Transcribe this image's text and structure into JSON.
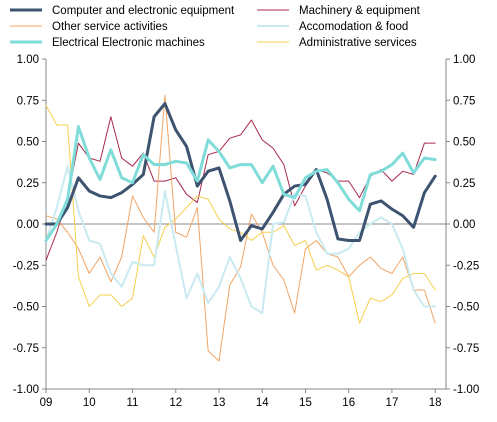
{
  "chart_data": {
    "type": "line",
    "title": "",
    "xlabel": "",
    "ylabel": "",
    "ylim": [
      -1.0,
      1.0
    ],
    "y_ticks": [
      "1.00",
      "0.75",
      "0.50",
      "0.25",
      "0.00",
      "-0.25",
      "-0.50",
      "-0.75",
      "-1.00"
    ],
    "y_tick_values": [
      1.0,
      0.75,
      0.5,
      0.25,
      0.0,
      -0.25,
      -0.5,
      -0.75,
      -1.0
    ],
    "x_ticks": [
      "09",
      "10",
      "11",
      "12",
      "13",
      "14",
      "15",
      "16",
      "17",
      "18"
    ],
    "x_tick_values": [
      2009,
      2010,
      2011,
      2012,
      2013,
      2014,
      2015,
      2016,
      2017,
      2018
    ],
    "xlim": [
      2009,
      2018.25
    ],
    "grid": false,
    "zero_line": true,
    "legend_position": "top",
    "series": [
      {
        "name": "Computer and electronic equipment",
        "color": "#3d5370",
        "width": 3,
        "x": [
          2009,
          2009.25,
          2009.5,
          2009.75,
          2010,
          2010.25,
          2010.5,
          2010.75,
          2011,
          2011.25,
          2011.5,
          2011.75,
          2012,
          2012.25,
          2012.5,
          2012.75,
          2013,
          2013.25,
          2013.5,
          2013.75,
          2014,
          2014.25,
          2014.5,
          2014.75,
          2015,
          2015.25,
          2015.5,
          2015.75,
          2016,
          2016.25,
          2016.5,
          2016.75,
          2017,
          2017.25,
          2017.5,
          2017.75,
          2018
        ],
        "values": [
          0.0,
          0.0,
          0.1,
          0.28,
          0.2,
          0.17,
          0.16,
          0.19,
          0.24,
          0.3,
          0.65,
          0.73,
          0.57,
          0.47,
          0.23,
          0.32,
          0.34,
          0.14,
          -0.1,
          -0.01,
          -0.03,
          0.07,
          0.18,
          0.23,
          0.24,
          0.33,
          0.15,
          -0.09,
          -0.1,
          -0.1,
          0.12,
          0.14,
          0.09,
          0.05,
          -0.02,
          0.19,
          0.29
        ]
      },
      {
        "name": "Machinery & equipment",
        "color": "#a8294a",
        "width": 1,
        "x": [
          2009,
          2009.25,
          2009.5,
          2009.75,
          2010,
          2010.25,
          2010.5,
          2010.75,
          2011,
          2011.25,
          2011.5,
          2011.75,
          2012,
          2012.25,
          2012.5,
          2012.75,
          2013,
          2013.25,
          2013.5,
          2013.75,
          2014,
          2014.25,
          2014.5,
          2014.75,
          2015,
          2015.25,
          2015.5,
          2015.75,
          2016,
          2016.25,
          2016.5,
          2016.75,
          2017,
          2017.25,
          2017.5,
          2017.75,
          2018
        ],
        "values": [
          -0.22,
          -0.05,
          0.16,
          0.49,
          0.4,
          0.38,
          0.65,
          0.4,
          0.35,
          0.43,
          0.26,
          0.26,
          0.28,
          0.18,
          0.13,
          0.42,
          0.44,
          0.52,
          0.54,
          0.63,
          0.51,
          0.46,
          0.36,
          0.11,
          0.23,
          0.33,
          0.31,
          0.26,
          0.26,
          0.16,
          0.29,
          0.33,
          0.26,
          0.32,
          0.3,
          0.49,
          0.49
        ]
      },
      {
        "name": "Other service activities",
        "color": "#f0a465",
        "width": 1,
        "x": [
          2009,
          2009.25,
          2009.5,
          2009.75,
          2010,
          2010.25,
          2010.5,
          2010.75,
          2011,
          2011.25,
          2011.5,
          2011.75,
          2012,
          2012.25,
          2012.5,
          2012.75,
          2013,
          2013.25,
          2013.5,
          2013.75,
          2014,
          2014.25,
          2014.5,
          2014.75,
          2015,
          2015.25,
          2015.5,
          2015.75,
          2016,
          2016.25,
          2016.5,
          2016.75,
          2017,
          2017.25,
          2017.5,
          2017.75,
          2018
        ],
        "values": [
          0.05,
          0.03,
          -0.05,
          -0.15,
          -0.3,
          -0.2,
          -0.35,
          -0.2,
          0.17,
          0.04,
          -0.05,
          0.78,
          -0.05,
          -0.08,
          0.1,
          -0.77,
          -0.83,
          -0.37,
          -0.26,
          0.06,
          -0.05,
          -0.25,
          -0.34,
          -0.54,
          -0.15,
          -0.1,
          -0.18,
          -0.2,
          -0.32,
          -0.25,
          -0.2,
          -0.27,
          -0.3,
          -0.2,
          -0.4,
          -0.4,
          -0.6
        ]
      },
      {
        "name": "Accomodation & food",
        "color": "#c9eaf1",
        "width": 2,
        "x": [
          2009,
          2009.25,
          2009.5,
          2009.75,
          2010,
          2010.25,
          2010.5,
          2010.75,
          2011,
          2011.25,
          2011.5,
          2011.75,
          2012,
          2012.25,
          2012.5,
          2012.75,
          2013,
          2013.25,
          2013.5,
          2013.75,
          2014,
          2014.25,
          2014.5,
          2014.75,
          2015,
          2015.25,
          2015.5,
          2015.75,
          2016,
          2016.25,
          2016.5,
          2016.75,
          2017,
          2017.25,
          2017.5,
          2017.75,
          2018
        ],
        "values": [
          -0.1,
          0.1,
          0.35,
          0.08,
          -0.1,
          -0.12,
          -0.3,
          -0.38,
          -0.23,
          -0.25,
          -0.25,
          0.2,
          -0.13,
          -0.45,
          -0.3,
          -0.48,
          -0.38,
          -0.2,
          -0.33,
          -0.5,
          -0.54,
          0.0,
          0.01,
          0.18,
          0.17,
          -0.05,
          -0.18,
          -0.18,
          -0.15,
          -0.05,
          0.0,
          0.04,
          0.0,
          -0.15,
          -0.4,
          -0.5,
          -0.5
        ]
      },
      {
        "name": "Electrical Electronic machines",
        "color": "#7fdcd8",
        "width": 3,
        "x": [
          2009,
          2009.25,
          2009.5,
          2009.75,
          2010,
          2010.25,
          2010.5,
          2010.75,
          2011,
          2011.25,
          2011.5,
          2011.75,
          2012,
          2012.25,
          2012.5,
          2012.75,
          2013,
          2013.25,
          2013.5,
          2013.75,
          2014,
          2014.25,
          2014.5,
          2014.75,
          2015,
          2015.25,
          2015.5,
          2015.75,
          2016,
          2016.25,
          2016.5,
          2016.75,
          2017,
          2017.25,
          2017.5,
          2017.75,
          2018
        ],
        "values": [
          -0.1,
          0.0,
          0.15,
          0.59,
          0.4,
          0.27,
          0.45,
          0.28,
          0.25,
          0.42,
          0.36,
          0.36,
          0.38,
          0.37,
          0.26,
          0.51,
          0.44,
          0.34,
          0.36,
          0.36,
          0.25,
          0.35,
          0.18,
          0.16,
          0.28,
          0.32,
          0.33,
          0.25,
          0.15,
          0.08,
          0.3,
          0.32,
          0.36,
          0.43,
          0.31,
          0.4,
          0.39
        ]
      },
      {
        "name": "Administrative services",
        "color": "#f5d04e",
        "width": 1,
        "x": [
          2009,
          2009.25,
          2009.5,
          2009.75,
          2010,
          2010.25,
          2010.5,
          2010.75,
          2011,
          2011.25,
          2011.5,
          2011.75,
          2012,
          2012.25,
          2012.5,
          2012.75,
          2013,
          2013.25,
          2013.5,
          2013.75,
          2014,
          2014.25,
          2014.5,
          2014.75,
          2015,
          2015.25,
          2015.5,
          2015.75,
          2016,
          2016.25,
          2016.5,
          2016.75,
          2017,
          2017.25,
          2017.5,
          2017.75,
          2018
        ],
        "values": [
          0.72,
          0.6,
          0.6,
          -0.32,
          -0.5,
          -0.43,
          -0.43,
          -0.5,
          -0.45,
          -0.07,
          -0.2,
          -0.02,
          0.03,
          0.1,
          0.17,
          0.15,
          0.03,
          -0.03,
          -0.05,
          -0.1,
          -0.05,
          -0.05,
          -0.01,
          -0.13,
          -0.1,
          -0.28,
          -0.25,
          -0.28,
          -0.32,
          -0.6,
          -0.45,
          -0.47,
          -0.43,
          -0.33,
          -0.3,
          -0.3,
          -0.4
        ]
      }
    ]
  }
}
